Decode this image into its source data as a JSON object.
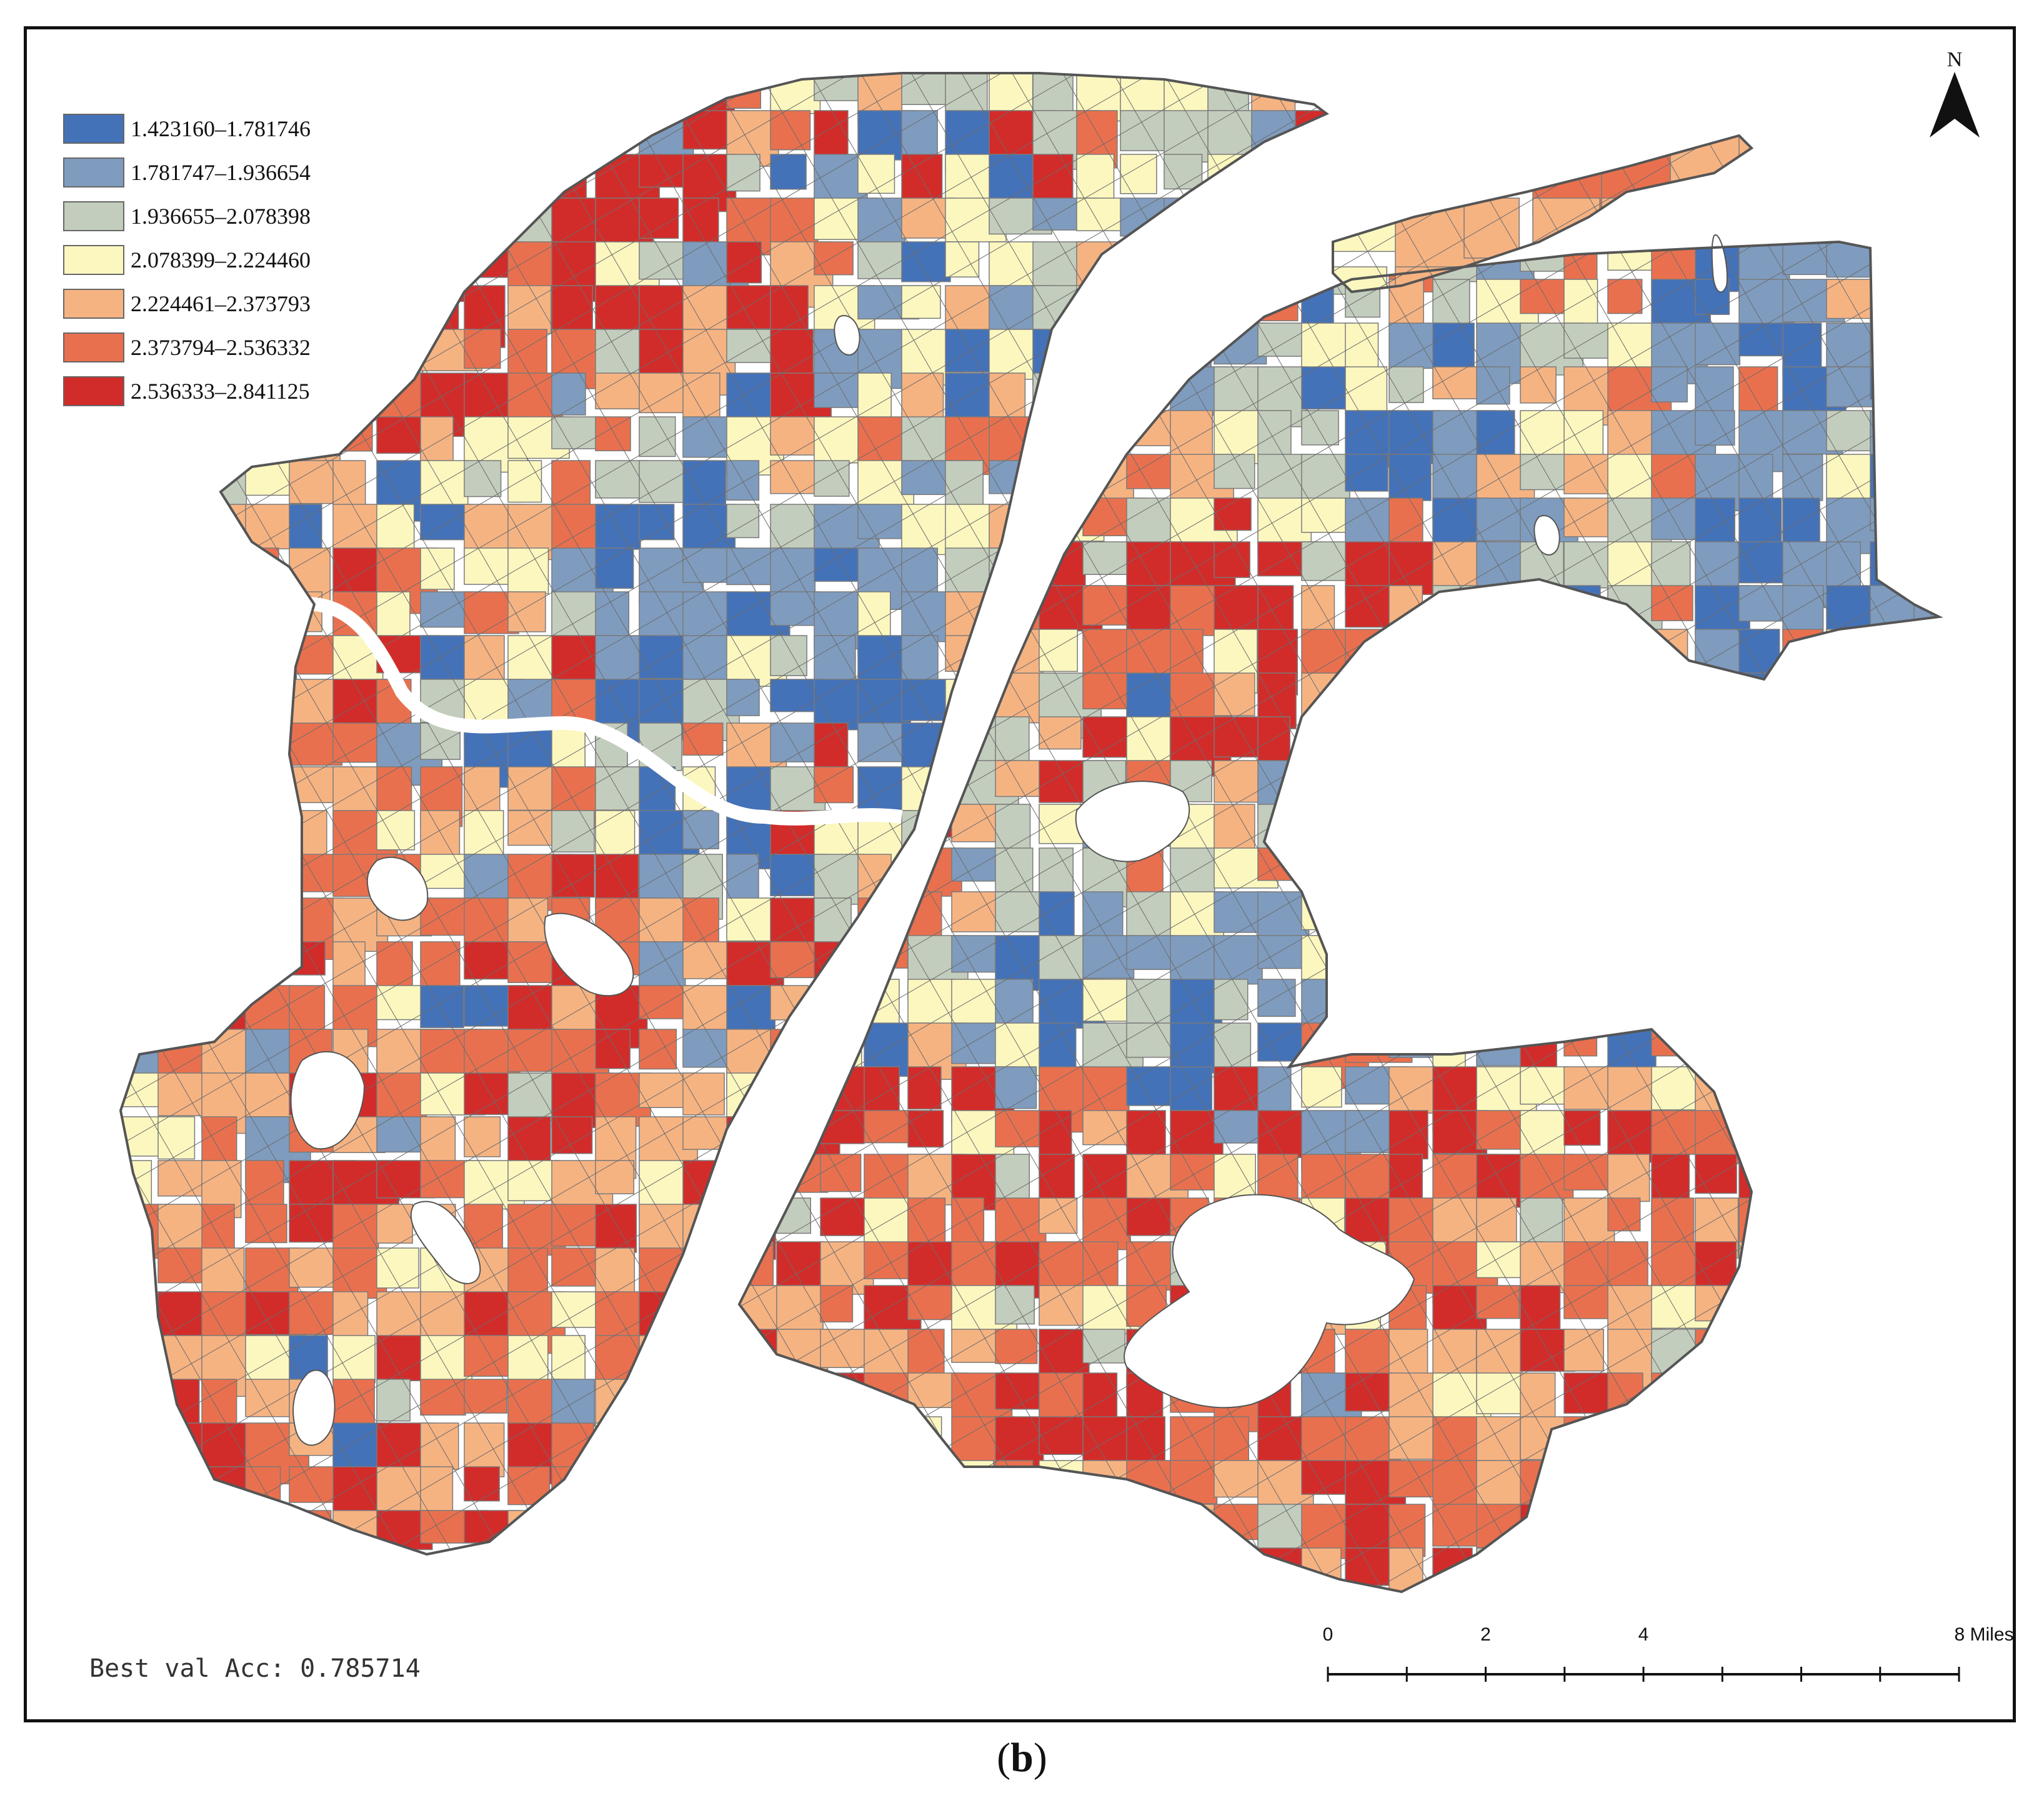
{
  "legend": {
    "classes": [
      {
        "range": "1.423160–1.781746",
        "color": "#4472b8"
      },
      {
        "range": "1.781747–1.936654",
        "color": "#7f9cbf"
      },
      {
        "range": "1.936655–2.078398",
        "color": "#c3cdbd"
      },
      {
        "range": "2.078399–2.224460",
        "color": "#fbf7bf"
      },
      {
        "range": "2.224461–2.373793",
        "color": "#f6b382"
      },
      {
        "range": "2.373794–2.536332",
        "color": "#e9704e"
      },
      {
        "range": "2.536333–2.841125",
        "color": "#d22c2a"
      }
    ]
  },
  "north_arrow": {
    "letter": "N"
  },
  "scale_bar": {
    "labels": [
      "0",
      "2",
      "4",
      "8 Miles"
    ],
    "label_values": [
      0,
      2,
      4,
      8
    ],
    "max_miles": 8,
    "divisions": 8
  },
  "annotation": {
    "accuracy_text": "Best val Acc: 0.785714"
  },
  "caption": {
    "open": "(",
    "letter": "b",
    "close": ")"
  },
  "colors": {
    "outline": "#555555",
    "river": "#ffffff",
    "frame": "#111111"
  }
}
